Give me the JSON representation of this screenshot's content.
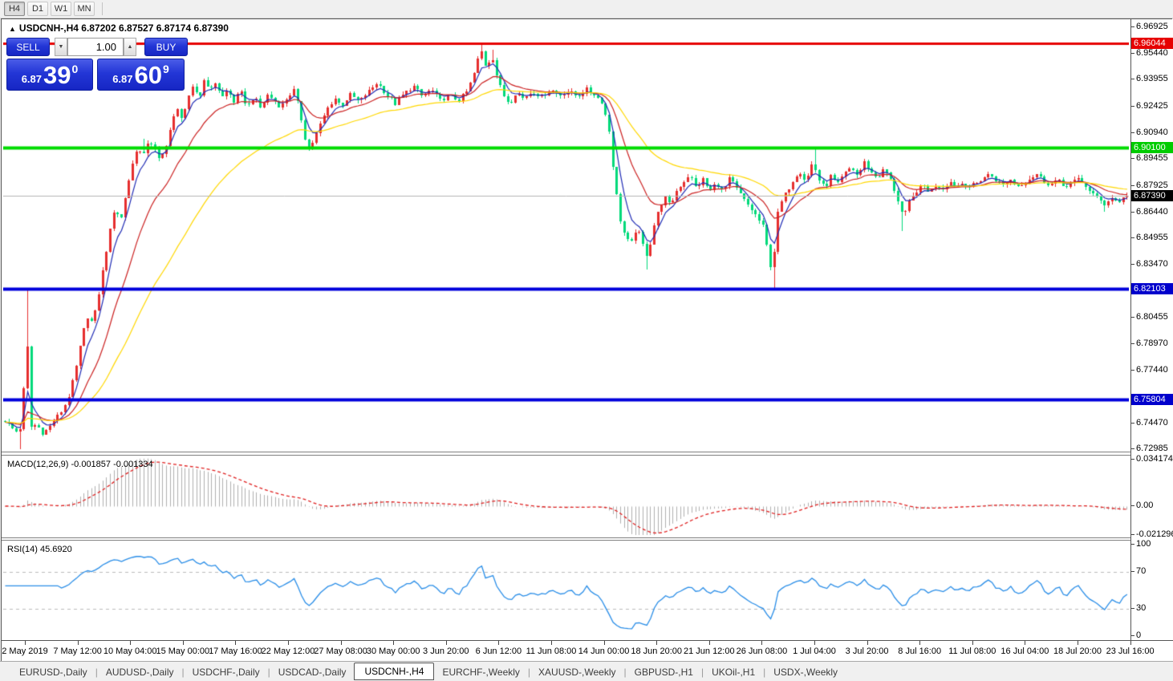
{
  "toolbar": {
    "buttons": [
      "H4",
      "D1",
      "W1",
      "MN"
    ],
    "active": "H4"
  },
  "chart": {
    "title_arrow": "▲",
    "symbol": "USDCNH-,H4",
    "ohlc": {
      "open": "6.87202",
      "high": "6.87527",
      "low": "6.87174",
      "close": "6.87390"
    }
  },
  "trade_panel": {
    "sell_label": "SELL",
    "buy_label": "BUY",
    "volume": "1.00",
    "spin_down_icon": "▼",
    "spin_up_icon": "▲",
    "sell_price": {
      "base": "6.87",
      "big": "39",
      "sup": "0"
    },
    "buy_price": {
      "base": "6.87",
      "big": "60",
      "sup": "9"
    }
  },
  "price_axis": {
    "ticks": [
      "6.96925",
      "6.95440",
      "6.93955",
      "6.92425",
      "6.90940",
      "6.89455",
      "6.87925",
      "6.86440",
      "6.84955",
      "6.83470",
      "6.80455",
      "6.78970",
      "6.77440",
      "6.74470",
      "6.72985"
    ],
    "badges": [
      {
        "value": "6.96044",
        "bg": "#e60000"
      },
      {
        "value": "6.90100",
        "bg": "#00cc00"
      },
      {
        "value": "6.82103",
        "bg": "#0000cc"
      },
      {
        "value": "6.75804",
        "bg": "#0000cc"
      },
      {
        "value": "6.87390",
        "bg": "#000000"
      }
    ]
  },
  "macd_panel": {
    "label": "MACD(12,26,9)",
    "value": "-0.001857",
    "signal_value": "-0.001334",
    "axis": [
      {
        "text": "0.034174",
        "v": 0.034174
      },
      {
        "text": "0.00",
        "v": 0
      },
      {
        "text": "-0.021296",
        "v": -0.021296
      }
    ]
  },
  "rsi_panel": {
    "label": "RSI(14)",
    "value": "45.6920",
    "axis": [
      {
        "text": "100",
        "v": 100
      },
      {
        "text": "70",
        "v": 70
      },
      {
        "text": "30",
        "v": 30
      },
      {
        "text": "0",
        "v": 0
      }
    ]
  },
  "tabs": [
    {
      "label": "EURUSD-,Daily"
    },
    {
      "label": "AUDUSD-,Daily"
    },
    {
      "label": "USDCHF-,Daily"
    },
    {
      "label": "USDCAD-,Daily"
    },
    {
      "label": "USDCNH-,H4",
      "active": true
    },
    {
      "label": "EURCHF-,Weekly"
    },
    {
      "label": "XAUUSD-,Weekly"
    },
    {
      "label": "GBPUSD-,H1"
    },
    {
      "label": "UKOil-,H1"
    },
    {
      "label": "USDX-,Weekly"
    }
  ],
  "chart_data": {
    "type": "candlestick",
    "symbol": "USDCNH",
    "timeframe": "H4",
    "color_convention": "red = up, green = down",
    "colors": {
      "up": "#e62e2e",
      "down": "#00d97a",
      "ma_fast": "#1f2bb5",
      "ma_mid": "#cc2222",
      "ma_slow": "#ffd800",
      "level_resistance": "#e60000",
      "level_green": "#00dc00",
      "level_blue": "#0000dc",
      "current_line": "#b4b4b4",
      "macd_hist": "#b0b0b0",
      "macd_signal": "#e02020",
      "rsi_line": "#2a8ee8",
      "rsi_levels": "#bbbbbb"
    },
    "y_range": [
      6.7295,
      6.973
    ],
    "levels": [
      {
        "value": 6.96044,
        "color": "#e60000",
        "width": 3
      },
      {
        "value": 6.901,
        "color": "#00dc00",
        "width": 4
      },
      {
        "value": 6.82103,
        "color": "#0000dc",
        "width": 4
      },
      {
        "value": 6.75804,
        "color": "#0000dc",
        "width": 4
      }
    ],
    "current_price": 6.8739,
    "last_ohlc": [
      6.87202,
      6.87527,
      6.87174,
      6.8739
    ],
    "x_labels": [
      "2 May 2019",
      "7 May 12:00",
      "10 May 04:00",
      "15 May 00:00",
      "17 May 16:00",
      "22 May 12:00",
      "27 May 08:00",
      "30 May 00:00",
      "3 Jun 20:00",
      "6 Jun 12:00",
      "11 Jun 08:00",
      "14 Jun 00:00",
      "18 Jun 20:00",
      "21 Jun 12:00",
      "26 Jun 08:00",
      "1 Jul 04:00",
      "3 Jul 20:00",
      "8 Jul 16:00",
      "11 Jul 08:00",
      "16 Jul 04:00",
      "18 Jul 20:00",
      "23 Jul 16:00"
    ],
    "price_path": [
      [
        0.0,
        6.746
      ],
      [
        0.006,
        6.742
      ],
      [
        0.012,
        6.739
      ],
      [
        0.016,
        6.748
      ],
      [
        0.019,
        6.813
      ],
      [
        0.022,
        6.742
      ],
      [
        0.028,
        6.744
      ],
      [
        0.034,
        6.739
      ],
      [
        0.04,
        6.743
      ],
      [
        0.046,
        6.748
      ],
      [
        0.052,
        6.753
      ],
      [
        0.058,
        6.762
      ],
      [
        0.064,
        6.778
      ],
      [
        0.069,
        6.795
      ],
      [
        0.074,
        6.806
      ],
      [
        0.078,
        6.801
      ],
      [
        0.083,
        6.816
      ],
      [
        0.088,
        6.835
      ],
      [
        0.093,
        6.852
      ],
      [
        0.098,
        6.868
      ],
      [
        0.103,
        6.859
      ],
      [
        0.108,
        6.876
      ],
      [
        0.113,
        6.89
      ],
      [
        0.118,
        6.902
      ],
      [
        0.123,
        6.895
      ],
      [
        0.128,
        6.906
      ],
      [
        0.133,
        6.901
      ],
      [
        0.138,
        6.893
      ],
      [
        0.143,
        6.901
      ],
      [
        0.148,
        6.913
      ],
      [
        0.153,
        6.923
      ],
      [
        0.158,
        6.918
      ],
      [
        0.163,
        6.928
      ],
      [
        0.168,
        6.936
      ],
      [
        0.173,
        6.929
      ],
      [
        0.178,
        6.941
      ],
      [
        0.183,
        6.933
      ],
      [
        0.188,
        6.939
      ],
      [
        0.193,
        6.929
      ],
      [
        0.198,
        6.934
      ],
      [
        0.204,
        6.927
      ],
      [
        0.21,
        6.933
      ],
      [
        0.216,
        6.924
      ],
      [
        0.222,
        6.93
      ],
      [
        0.228,
        6.923
      ],
      [
        0.234,
        6.931
      ],
      [
        0.24,
        6.928
      ],
      [
        0.246,
        6.924
      ],
      [
        0.252,
        6.93
      ],
      [
        0.258,
        6.934
      ],
      [
        0.264,
        6.918
      ],
      [
        0.27,
        6.899
      ],
      [
        0.276,
        6.906
      ],
      [
        0.282,
        6.916
      ],
      [
        0.288,
        6.924
      ],
      [
        0.294,
        6.929
      ],
      [
        0.3,
        6.925
      ],
      [
        0.308,
        6.931
      ],
      [
        0.316,
        6.927
      ],
      [
        0.324,
        6.933
      ],
      [
        0.332,
        6.938
      ],
      [
        0.34,
        6.931
      ],
      [
        0.348,
        6.926
      ],
      [
        0.356,
        6.932
      ],
      [
        0.364,
        6.936
      ],
      [
        0.372,
        6.93
      ],
      [
        0.38,
        6.934
      ],
      [
        0.388,
        6.928
      ],
      [
        0.396,
        6.931
      ],
      [
        0.404,
        6.928
      ],
      [
        0.412,
        6.933
      ],
      [
        0.418,
        6.943
      ],
      [
        0.424,
        6.957
      ],
      [
        0.429,
        6.946
      ],
      [
        0.434,
        6.954
      ],
      [
        0.439,
        6.94
      ],
      [
        0.444,
        6.931
      ],
      [
        0.45,
        6.926
      ],
      [
        0.456,
        6.933
      ],
      [
        0.462,
        6.929
      ],
      [
        0.47,
        6.933
      ],
      [
        0.478,
        6.93
      ],
      [
        0.486,
        6.934
      ],
      [
        0.494,
        6.931
      ],
      [
        0.502,
        6.933
      ],
      [
        0.51,
        6.93
      ],
      [
        0.518,
        6.934
      ],
      [
        0.526,
        6.931
      ],
      [
        0.532,
        6.927
      ],
      [
        0.538,
        6.913
      ],
      [
        0.543,
        6.884
      ],
      [
        0.548,
        6.861
      ],
      [
        0.553,
        6.85
      ],
      [
        0.558,
        6.846
      ],
      [
        0.563,
        6.856
      ],
      [
        0.568,
        6.847
      ],
      [
        0.573,
        6.839
      ],
      [
        0.578,
        6.856
      ],
      [
        0.583,
        6.866
      ],
      [
        0.588,
        6.873
      ],
      [
        0.593,
        6.868
      ],
      [
        0.598,
        6.876
      ],
      [
        0.604,
        6.881
      ],
      [
        0.61,
        6.886
      ],
      [
        0.616,
        6.878
      ],
      [
        0.622,
        6.883
      ],
      [
        0.628,
        6.876
      ],
      [
        0.634,
        6.881
      ],
      [
        0.64,
        6.876
      ],
      [
        0.646,
        6.884
      ],
      [
        0.652,
        6.878
      ],
      [
        0.658,
        6.872
      ],
      [
        0.664,
        6.867
      ],
      [
        0.67,
        6.862
      ],
      [
        0.676,
        6.856
      ],
      [
        0.681,
        6.838
      ],
      [
        0.684,
        6.829
      ],
      [
        0.688,
        6.862
      ],
      [
        0.692,
        6.87
      ],
      [
        0.697,
        6.876
      ],
      [
        0.702,
        6.882
      ],
      [
        0.708,
        6.888
      ],
      [
        0.714,
        6.882
      ],
      [
        0.72,
        6.893
      ],
      [
        0.726,
        6.882
      ],
      [
        0.731,
        6.878
      ],
      [
        0.736,
        6.885
      ],
      [
        0.742,
        6.88
      ],
      [
        0.748,
        6.886
      ],
      [
        0.754,
        6.89
      ],
      [
        0.76,
        6.885
      ],
      [
        0.766,
        6.893
      ],
      [
        0.772,
        6.887
      ],
      [
        0.778,
        6.884
      ],
      [
        0.784,
        6.889
      ],
      [
        0.79,
        6.882
      ],
      [
        0.796,
        6.871
      ],
      [
        0.801,
        6.861
      ],
      [
        0.806,
        6.87
      ],
      [
        0.812,
        6.876
      ],
      [
        0.818,
        6.88
      ],
      [
        0.824,
        6.876
      ],
      [
        0.83,
        6.88
      ],
      [
        0.836,
        6.878
      ],
      [
        0.842,
        6.882
      ],
      [
        0.848,
        6.879
      ],
      [
        0.854,
        6.881
      ],
      [
        0.86,
        6.879
      ],
      [
        0.866,
        6.881
      ],
      [
        0.872,
        6.884
      ],
      [
        0.878,
        6.886
      ],
      [
        0.884,
        6.882
      ],
      [
        0.89,
        6.88
      ],
      [
        0.896,
        6.883
      ],
      [
        0.902,
        6.879
      ],
      [
        0.908,
        6.881
      ],
      [
        0.914,
        6.884
      ],
      [
        0.92,
        6.886
      ],
      [
        0.926,
        6.882
      ],
      [
        0.932,
        6.88
      ],
      [
        0.938,
        6.883
      ],
      [
        0.944,
        6.879
      ],
      [
        0.95,
        6.881
      ],
      [
        0.956,
        6.883
      ],
      [
        0.962,
        6.88
      ],
      [
        0.968,
        6.876
      ],
      [
        0.974,
        6.872
      ],
      [
        0.98,
        6.869
      ],
      [
        0.986,
        6.873
      ],
      [
        0.992,
        6.87
      ],
      [
        1.0,
        6.8739
      ]
    ],
    "spikes": [
      {
        "f": 0.012,
        "low": 6.73
      },
      {
        "f": 0.019,
        "high": 6.82
      },
      {
        "f": 0.124,
        "high": 6.906
      },
      {
        "f": 0.424,
        "high": 6.9605
      },
      {
        "f": 0.434,
        "high": 6.9565
      },
      {
        "f": 0.573,
        "low": 6.832
      },
      {
        "f": 0.684,
        "low": 6.8212
      },
      {
        "f": 0.721,
        "high": 6.901
      },
      {
        "f": 0.801,
        "low": 6.854
      },
      {
        "f": 0.98,
        "low": 6.865
      }
    ],
    "moving_averages": [
      {
        "name": "fast",
        "period": 5,
        "color": "#1f2bb5"
      },
      {
        "name": "mid",
        "period": 16,
        "color": "#cc2222"
      },
      {
        "name": "slow",
        "period": 42,
        "color": "#ffd800"
      }
    ],
    "macd": {
      "params": [
        12,
        26,
        9
      ],
      "current": [
        -0.001857,
        -0.001334
      ],
      "axis_range": [
        -0.021296,
        0.034174
      ]
    },
    "rsi": {
      "period": 14,
      "current": 45.692,
      "axis_range": [
        0,
        100
      ],
      "levels": [
        70,
        30
      ]
    }
  }
}
